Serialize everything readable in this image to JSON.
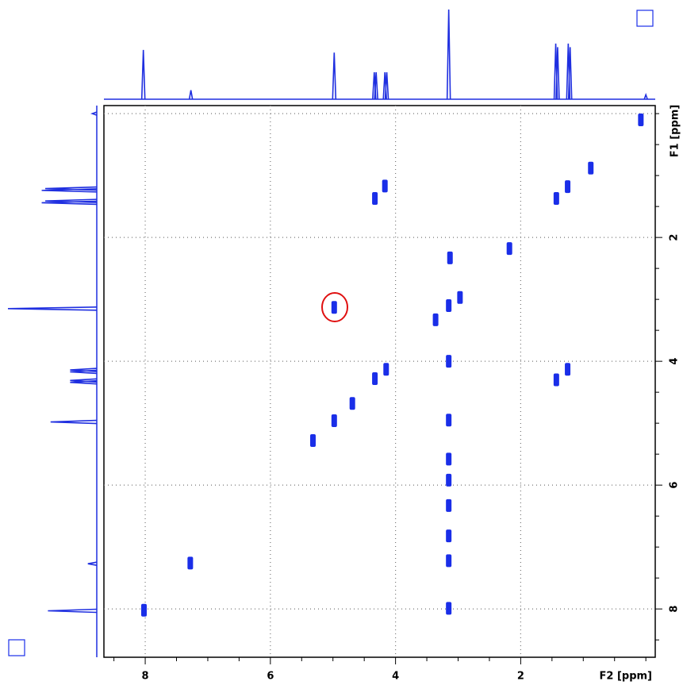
{
  "chart_data": {
    "type": "nmr2d",
    "x_label": "F2 [ppm]",
    "y_label": "F1 [ppm]",
    "xlim": [
      8.66,
      -0.15
    ],
    "ylim": [
      -0.13,
      8.78
    ],
    "xticks": [
      8,
      6,
      4,
      2
    ],
    "yticks": [
      2,
      4,
      6,
      8
    ],
    "xgrid": [
      8,
      6,
      4,
      2
    ],
    "ygrid": [
      0,
      2,
      4,
      6,
      8
    ],
    "xminor": [
      8.5,
      7.5,
      7,
      6.5,
      5.5,
      5,
      4.5,
      3.5,
      3,
      2.5,
      1.5,
      1,
      0.5,
      0
    ],
    "yminor": [
      0,
      0.5,
      1,
      1.5,
      2.5,
      3,
      3.5,
      4.5,
      5,
      5.5,
      6.5,
      7,
      7.5,
      8.5
    ],
    "peak_color": "#1a2ee8",
    "projection_color": "#1f2fe0",
    "cross_peaks": {
      "x": [
        0.08,
        1.25,
        1.43,
        0.88,
        4.17,
        4.33,
        2.18,
        3.13,
        3.15,
        2.97,
        3.36,
        4.98,
        4.15,
        4.33,
        1.25,
        1.43,
        3.15,
        4.69,
        4.98,
        3.15,
        5.32,
        3.15,
        3.15,
        3.15,
        3.15,
        3.15,
        7.28,
        8.02,
        3.15
      ],
      "y": [
        0.1,
        1.18,
        1.37,
        0.88,
        1.17,
        1.37,
        2.18,
        2.33,
        3.1,
        2.97,
        3.33,
        3.13,
        4.13,
        4.28,
        4.13,
        4.3,
        4.0,
        4.68,
        4.96,
        4.95,
        5.28,
        5.58,
        5.92,
        6.33,
        6.82,
        7.22,
        7.26,
        8.02,
        7.99
      ]
    },
    "projection": {
      "shift": [
        8.03,
        7.27,
        4.98,
        4.34,
        4.31,
        4.17,
        4.14,
        3.15,
        1.44,
        1.41,
        1.24,
        1.21,
        0.0
      ],
      "intensity": [
        55,
        10,
        52,
        30,
        30,
        30,
        30,
        100,
        62,
        58,
        62,
        58,
        5
      ]
    }
  }
}
